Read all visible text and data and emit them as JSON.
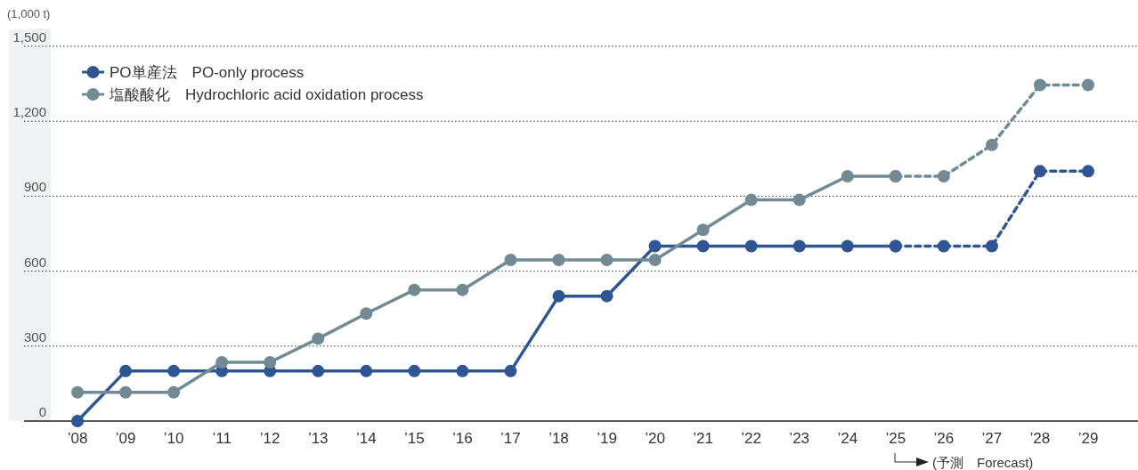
{
  "chart_data": {
    "type": "line",
    "categories": [
      "’08",
      "’09",
      "’10",
      "’11",
      "’12",
      "’13",
      "’14",
      "’15",
      "’16",
      "’17",
      "’18",
      "’19",
      "’20",
      "’21",
      "’22",
      "’23",
      "’24",
      "’25",
      "’26",
      "’27",
      "’28",
      "’29"
    ],
    "series": [
      {
        "name": "PO単産法　PO-only process",
        "color": "#2f5592",
        "line_style": "solid",
        "values": [
          0,
          200,
          200,
          200,
          200,
          200,
          200,
          200,
          200,
          200,
          500,
          500,
          700,
          700,
          700,
          700,
          700,
          700,
          null,
          null,
          null,
          null
        ]
      },
      {
        "name": "塩酸酸化　Hydrochloric acid oxidation process",
        "color": "#718a94",
        "line_style": "solid",
        "values": [
          115,
          115,
          115,
          235,
          235,
          330,
          430,
          525,
          525,
          645,
          645,
          645,
          645,
          765,
          885,
          885,
          980,
          980,
          null,
          null,
          null,
          null
        ]
      },
      {
        "color": "#2f5592",
        "line_style": "dashed",
        "values": [
          null,
          null,
          null,
          null,
          null,
          null,
          null,
          null,
          null,
          null,
          null,
          null,
          null,
          null,
          null,
          null,
          null,
          700,
          700,
          700,
          1000,
          1000
        ]
      },
      {
        "color": "#718a94",
        "line_style": "dashed",
        "values": [
          null,
          null,
          null,
          null,
          null,
          null,
          null,
          null,
          null,
          null,
          null,
          null,
          null,
          null,
          null,
          null,
          null,
          980,
          980,
          1105,
          1345,
          1345
        ]
      }
    ],
    "ylabel": "(1,000 t)",
    "ylim": [
      0,
      1500
    ],
    "yticks": [
      0,
      {
        "value": 300,
        "label": "300"
      },
      {
        "value": 600,
        "label": "600"
      },
      {
        "value": 900,
        "label": "900"
      },
      {
        "value": 1200,
        "label": "1,200"
      },
      {
        "value": 1500,
        "label": "1,500"
      }
    ],
    "grid": "y",
    "legend": "top left",
    "marker": "circle",
    "annotations": [
      "(予測　Forecast)"
    ]
  }
}
